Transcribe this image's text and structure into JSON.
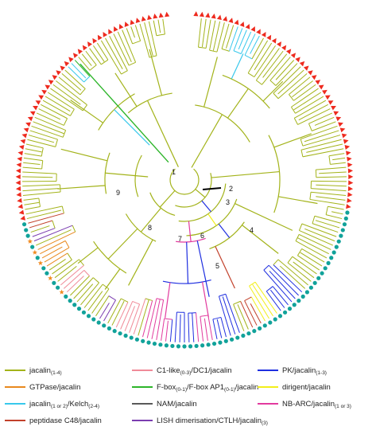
{
  "figure": {
    "clades": [
      "1",
      "2",
      "3",
      "4",
      "5",
      "6",
      "7",
      "8",
      "9"
    ],
    "colors": {
      "jacalin": "#a3b31a",
      "gtpase": "#e8891e",
      "kelch": "#38c8ec",
      "peptidase": "#c2412b",
      "c1like": "#f08a98",
      "fbox": "#2db52a",
      "nam": "#595959",
      "lish": "#7b3db0",
      "pk": "#1f2fe0",
      "dirigent": "#f2ef1a",
      "nbarc": "#e23a9e",
      "triangle": "#ee2a1e",
      "circle": "#11a29a",
      "star": "#f08a20",
      "diamond": "#f2c41a",
      "scalebar": "#000000"
    },
    "marker_icons": [
      "red-triangle-icon",
      "teal-circle-icon",
      "orange-star-icon",
      "yellow-diamond-icon"
    ]
  },
  "legend": {
    "col1": [
      {
        "key": "jacalin",
        "main": "jacalin",
        "sub": "(1-4)",
        "rest": ""
      },
      {
        "key": "gtpase",
        "main": "GTPase/jacalin",
        "sub": "",
        "rest": ""
      },
      {
        "key": "kelch",
        "main": "jacalin",
        "sub": "(1 or 2)",
        "rest": "/Kelch",
        "sub2": "(2-4)"
      },
      {
        "key": "peptidase",
        "main": "peptidase C48/jacalin",
        "sub": "",
        "rest": ""
      }
    ],
    "col2": [
      {
        "key": "c1like",
        "main": "C1-like",
        "sub": "(0-3)",
        "rest": "/DC1/jacalin"
      },
      {
        "key": "fbox",
        "main": "F-box",
        "sub": "(0-1)",
        "rest": "/F-box AP1",
        "sub2": "(0-1)",
        "rest2": "/jacalin"
      },
      {
        "key": "nam",
        "main": "NAM/jacalin",
        "sub": "",
        "rest": ""
      },
      {
        "key": "lish",
        "main": "LISH dimerisation/CTLH/jacalin",
        "sub": "(3)",
        "rest": ""
      }
    ],
    "col3": [
      {
        "key": "pk",
        "main": "PK/jacalin",
        "sub": "(1-3)",
        "rest": ""
      },
      {
        "key": "dirigent",
        "main": "dirigent/jacalin",
        "sub": "",
        "rest": ""
      },
      {
        "key": "nbarc",
        "main": "NB-ARC/jacalin",
        "sub": "(1 or 3)",
        "rest": ""
      }
    ]
  }
}
